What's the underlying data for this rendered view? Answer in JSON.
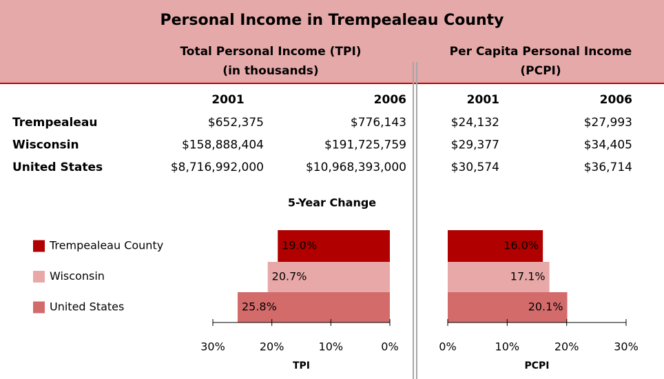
{
  "table": {
    "title": "Personal Income in Trempealeau County",
    "tpi_header": "Total Personal Income (TPI)",
    "tpi_subheader": "(in thousands)",
    "pcpi_header": "Per Capita Personal Income",
    "pcpi_subheader": "(PCPI)",
    "years": [
      "2001",
      "2006",
      "2001",
      "2006"
    ],
    "rows": [
      [
        "Trempealeau",
        "$652,375",
        "$776,143",
        "$24,132",
        "$27,993"
      ],
      [
        "Wisconsin",
        "$158,888,404",
        "$191,725,759",
        "$29,377",
        "$34,405"
      ],
      [
        "United States",
        "$8,716,992,000",
        "$10,968,393,000",
        "$30,574",
        "$36,714"
      ]
    ]
  },
  "change_title": "5-Year Change",
  "chart_data": [
    {
      "type": "hbar",
      "xlabel": "TPI",
      "categories": [
        "Trempealeau County",
        "Wisconsin",
        "United States"
      ],
      "values": [
        19.0,
        20.7,
        25.8
      ],
      "value_labels": [
        "19.0%",
        "20.7%",
        "25.8%"
      ],
      "colors": [
        "#b00000",
        "#e8a8a8",
        "#d46b6b"
      ],
      "xlim": [
        30,
        0
      ],
      "xticks": [
        {
          "value": 30,
          "label": "30%"
        },
        {
          "value": 20,
          "label": "20%"
        },
        {
          "value": 10,
          "label": "10%"
        },
        {
          "value": 0,
          "label": "0%"
        }
      ]
    },
    {
      "type": "hbar",
      "xlabel": "PCPI",
      "values": [
        16.0,
        17.1,
        20.1
      ],
      "value_labels": [
        "16.0%",
        "17.1%",
        "20.1%"
      ],
      "colors": [
        "#b00000",
        "#e8a8a8",
        "#d46b6b"
      ],
      "xlim": [
        0,
        30
      ],
      "xticks": [
        {
          "value": 0,
          "label": "0%"
        },
        {
          "value": 10,
          "label": "10%"
        },
        {
          "value": 20,
          "label": "20%"
        },
        {
          "value": 30,
          "label": "30%"
        }
      ]
    }
  ]
}
